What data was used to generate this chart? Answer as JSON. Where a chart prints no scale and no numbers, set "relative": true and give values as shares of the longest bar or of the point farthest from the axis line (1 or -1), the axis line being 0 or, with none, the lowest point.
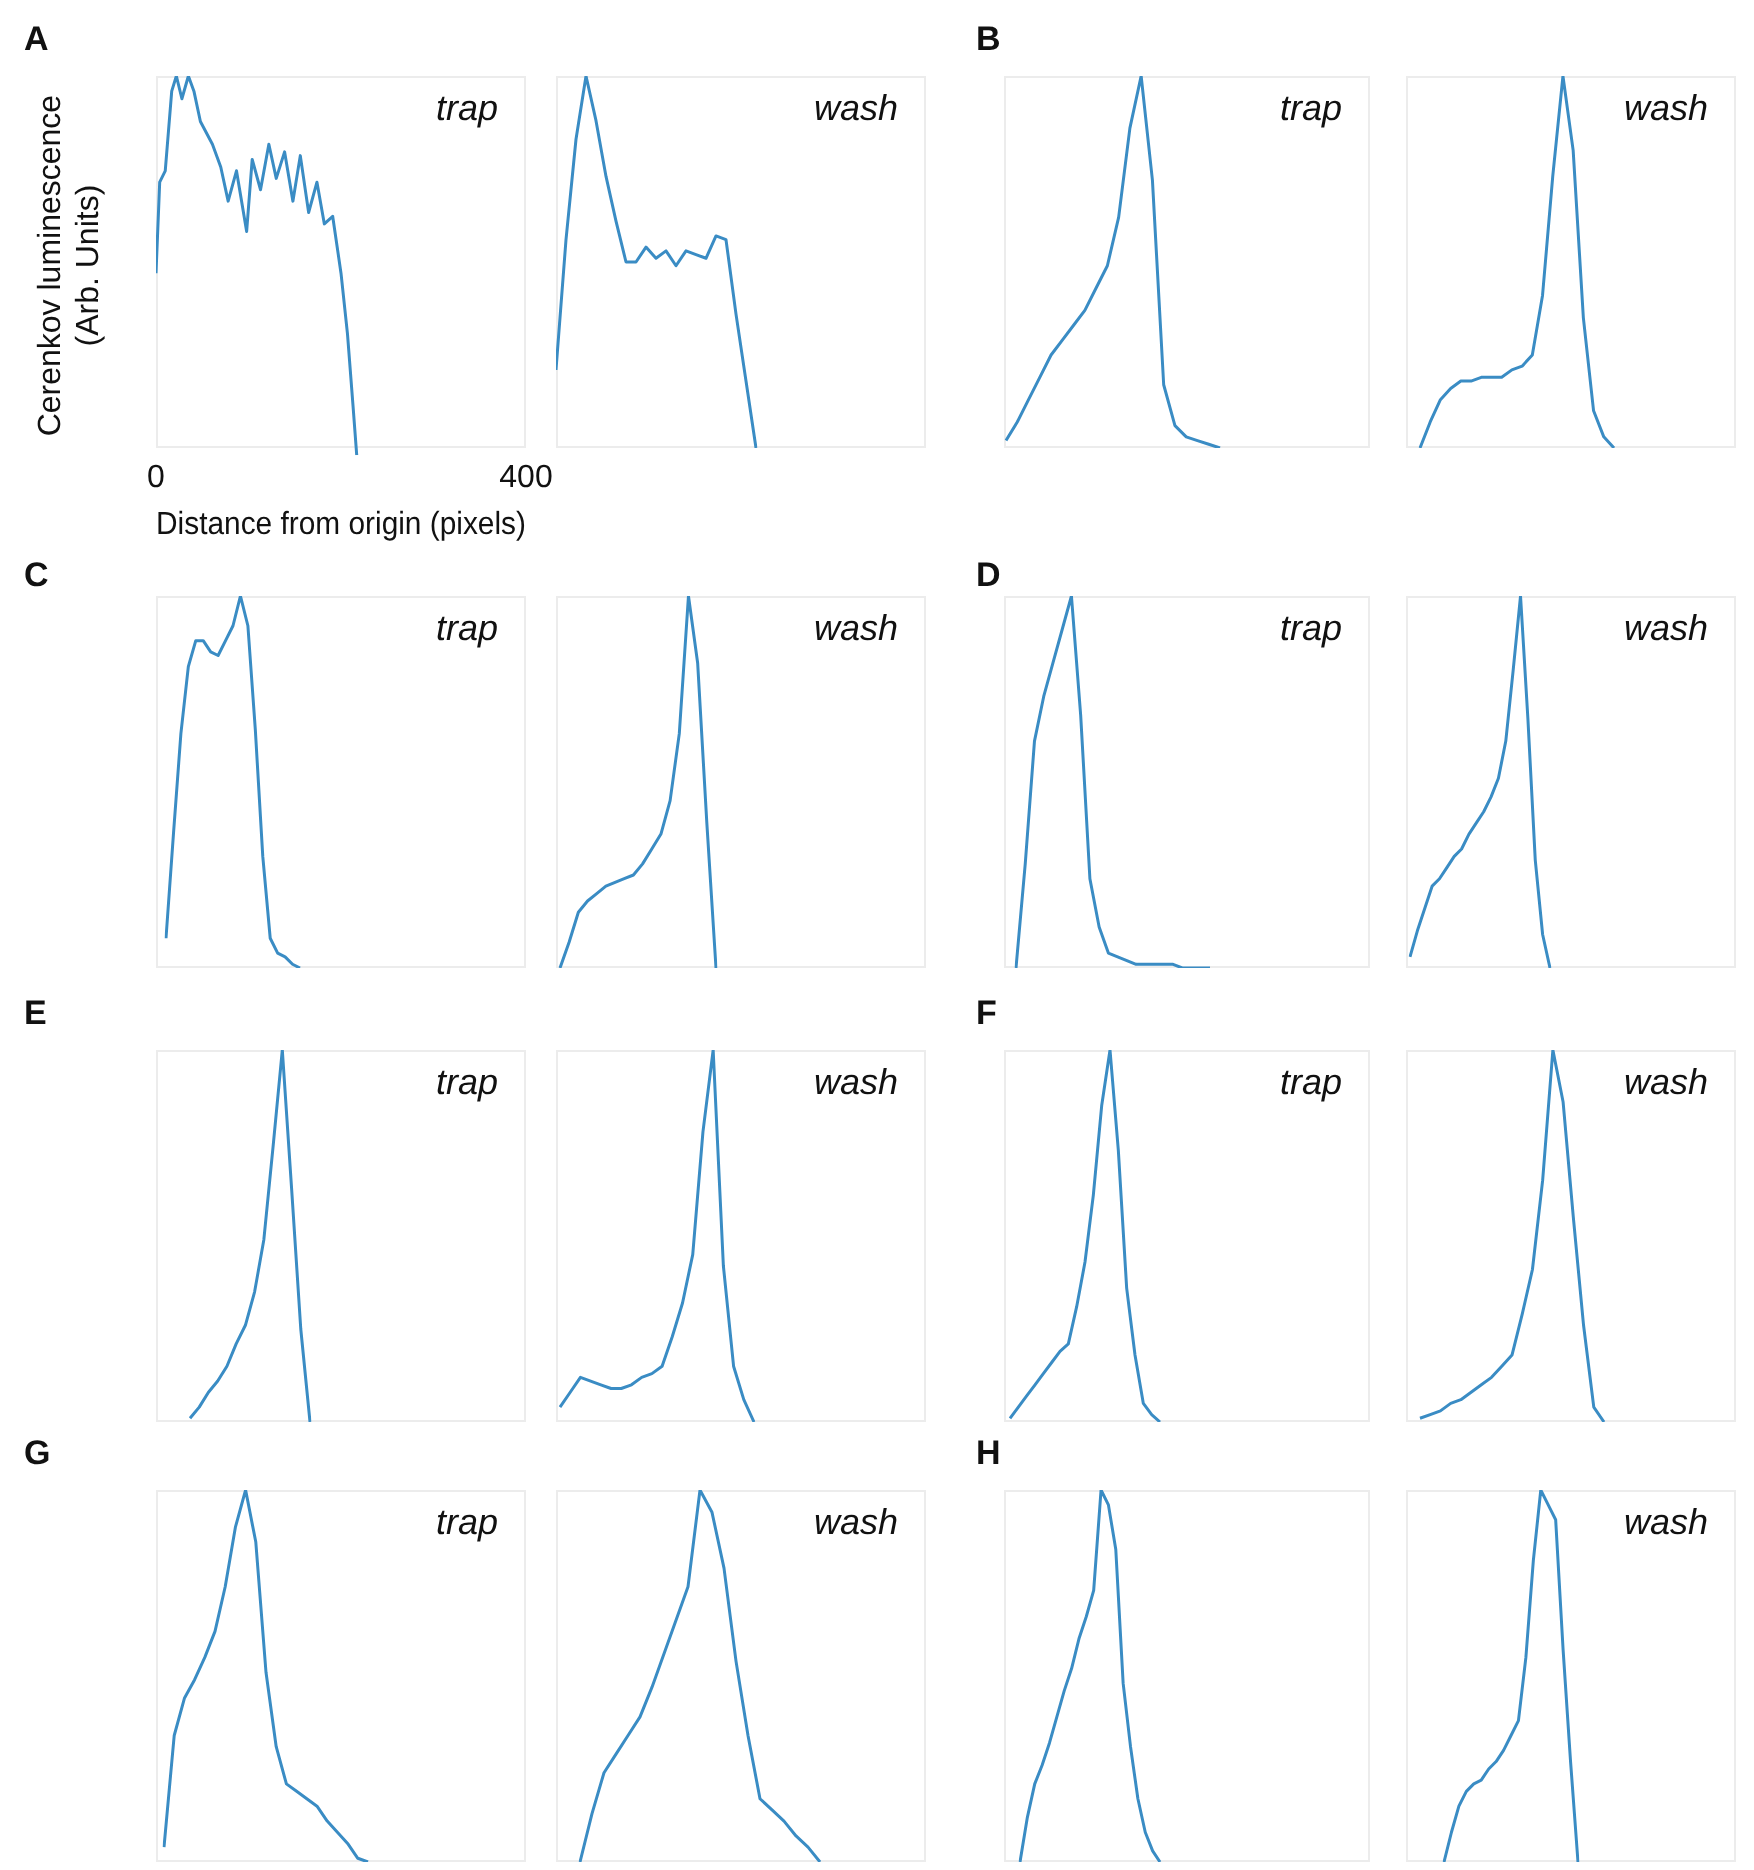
{
  "chart_data": [
    {
      "type": "line",
      "title": "A",
      "annotations": [
        "trap"
      ],
      "xlabel": "Distance from origin (pixels)",
      "ylabel": "Cerenkov luminescence (Arb. Units)",
      "relative": true,
      "xlim": [
        0,
        400
      ],
      "xticks": [
        0,
        400
      ],
      "tick_labels": "x",
      "color": "#3a8cc4",
      "x": [
        0,
        4,
        10,
        17,
        22,
        28,
        35,
        41,
        48,
        61,
        70,
        78,
        87,
        98,
        104,
        113,
        122,
        130,
        139,
        148,
        156,
        165,
        174,
        182,
        191,
        200,
        207,
        213,
        217
      ],
      "values": [
        0.48,
        0.72,
        0.75,
        0.96,
        1,
        0.94,
        1,
        0.96,
        0.88,
        0.82,
        0.76,
        0.67,
        0.75,
        0.59,
        0.78,
        0.7,
        0.82,
        0.73,
        0.8,
        0.67,
        0.79,
        0.64,
        0.72,
        0.61,
        0.63,
        0.48,
        0.32,
        0.13,
        0
      ]
    },
    {
      "type": "line",
      "annotations": [
        "wash"
      ],
      "relative": true,
      "color": "#3a8cc4",
      "categories": [
        null,
        null,
        null,
        null,
        null,
        null,
        null,
        null,
        null,
        null,
        null,
        null,
        null,
        null,
        null,
        null,
        null,
        null,
        null,
        null,
        null
      ],
      "values": [
        0.21,
        0.56,
        0.83,
        1,
        0.88,
        0.73,
        0.61,
        0.5,
        0.5,
        0.54,
        0.51,
        0.53,
        0.49,
        0.53,
        0.52,
        0.51,
        0.57,
        0.56,
        0.36,
        0.18,
        0
      ]
    },
    {
      "type": "line",
      "title": "B",
      "annotations": [
        "trap"
      ],
      "relative": true,
      "color": "#3a8cc4",
      "categories": [
        null,
        null,
        null,
        null,
        null,
        null,
        null,
        null,
        null,
        null,
        null,
        null,
        null,
        null,
        null,
        null,
        null,
        null,
        null,
        null
      ],
      "values": [
        0.02,
        0.07,
        0.13,
        0.19,
        0.25,
        0.29,
        0.33,
        0.37,
        0.43,
        0.49,
        0.62,
        0.86,
        1,
        0.72,
        0.17,
        0.06,
        0.03,
        0.02,
        0.01,
        0
      ]
    },
    {
      "type": "line",
      "annotations": [
        "wash"
      ],
      "relative": true,
      "color": "#3a8cc4",
      "categories": [
        null,
        null,
        null,
        null,
        null,
        null,
        null,
        null,
        null,
        null,
        null,
        null,
        null,
        null,
        null,
        null,
        null,
        null,
        null,
        null
      ],
      "values": [
        0,
        0.07,
        0.13,
        0.16,
        0.18,
        0.18,
        0.19,
        0.19,
        0.19,
        0.21,
        0.22,
        0.25,
        0.41,
        0.73,
        1,
        0.8,
        0.35,
        0.1,
        0.03,
        0
      ]
    },
    {
      "type": "line",
      "title": "C",
      "annotations": [
        "trap"
      ],
      "relative": true,
      "color": "#3a8cc4",
      "categories": [
        null,
        null,
        null,
        null,
        null,
        null,
        null,
        null,
        null,
        null,
        null,
        null,
        null,
        null,
        null,
        null,
        null,
        null,
        null
      ],
      "values": [
        0.08,
        0.36,
        0.63,
        0.81,
        0.88,
        0.88,
        0.85,
        0.84,
        0.88,
        0.92,
        1,
        0.92,
        0.64,
        0.3,
        0.08,
        0.04,
        0.03,
        0.01,
        0
      ]
    },
    {
      "type": "line",
      "annotations": [
        "wash"
      ],
      "relative": true,
      "color": "#3a8cc4",
      "categories": [
        null,
        null,
        null,
        null,
        null,
        null,
        null,
        null,
        null,
        null,
        null,
        null,
        null,
        null,
        null,
        null,
        null,
        null
      ],
      "values": [
        0,
        0.07,
        0.15,
        0.18,
        0.2,
        0.22,
        0.23,
        0.24,
        0.25,
        0.28,
        0.32,
        0.36,
        0.45,
        0.63,
        1,
        0.82,
        0.39,
        0
      ]
    },
    {
      "type": "line",
      "title": "D",
      "annotations": [
        "trap"
      ],
      "relative": true,
      "color": "#3a8cc4",
      "categories": [
        null,
        null,
        null,
        null,
        null,
        null,
        null,
        null,
        null,
        null,
        null,
        null,
        null,
        null,
        null,
        null,
        null,
        null,
        null,
        null,
        null,
        null
      ],
      "values": [
        0,
        0.28,
        0.61,
        0.73,
        0.82,
        0.91,
        1,
        0.68,
        0.24,
        0.11,
        0.04,
        0.03,
        0.02,
        0.01,
        0.01,
        0.01,
        0.01,
        0.01,
        0,
        0,
        0,
        0
      ]
    },
    {
      "type": "line",
      "annotations": [
        "wash"
      ],
      "relative": true,
      "color": "#3a8cc4",
      "categories": [
        null,
        null,
        null,
        null,
        null,
        null,
        null,
        null,
        null,
        null,
        null,
        null,
        null,
        null,
        null,
        null,
        null,
        null,
        null,
        null
      ],
      "values": [
        0.03,
        0.1,
        0.16,
        0.22,
        0.24,
        0.27,
        0.3,
        0.32,
        0.36,
        0.39,
        0.42,
        0.46,
        0.51,
        0.61,
        0.8,
        1,
        0.67,
        0.29,
        0.09,
        0
      ]
    },
    {
      "type": "line",
      "title": "E",
      "annotations": [
        "trap"
      ],
      "relative": true,
      "color": "#3a8cc4",
      "categories": [
        null,
        null,
        null,
        null,
        null,
        null,
        null,
        null,
        null,
        null,
        null,
        null,
        null,
        null
      ],
      "values": [
        0.01,
        0.04,
        0.08,
        0.11,
        0.15,
        0.21,
        0.26,
        0.35,
        0.49,
        0.74,
        1,
        0.63,
        0.25,
        0
      ]
    },
    {
      "type": "line",
      "annotations": [
        "wash"
      ],
      "relative": true,
      "color": "#3a8cc4",
      "categories": [
        null,
        null,
        null,
        null,
        null,
        null,
        null,
        null,
        null,
        null,
        null,
        null,
        null,
        null,
        null,
        null,
        null,
        null,
        null,
        null
      ],
      "values": [
        0.04,
        0.08,
        0.12,
        0.11,
        0.1,
        0.09,
        0.09,
        0.1,
        0.12,
        0.13,
        0.15,
        0.23,
        0.32,
        0.45,
        0.78,
        1,
        0.42,
        0.15,
        0.06,
        0
      ]
    },
    {
      "type": "line",
      "title": "F",
      "annotations": [
        "trap"
      ],
      "relative": true,
      "color": "#3a8cc4",
      "categories": [
        null,
        null,
        null,
        null,
        null,
        null,
        null,
        null,
        null,
        null,
        null,
        null,
        null,
        null,
        null,
        null,
        null,
        null,
        null
      ],
      "values": [
        0.01,
        0.04,
        0.07,
        0.1,
        0.13,
        0.16,
        0.19,
        0.21,
        0.31,
        0.43,
        0.61,
        0.85,
        1,
        0.73,
        0.36,
        0.18,
        0.05,
        0.02,
        0
      ]
    },
    {
      "type": "line",
      "annotations": [
        "wash"
      ],
      "relative": true,
      "color": "#3a8cc4",
      "categories": [
        null,
        null,
        null,
        null,
        null,
        null,
        null,
        null,
        null,
        null,
        null,
        null,
        null,
        null,
        null,
        null,
        null,
        null,
        null
      ],
      "values": [
        0.01,
        0.02,
        0.03,
        0.05,
        0.06,
        0.08,
        0.1,
        0.12,
        0.15,
        0.18,
        0.29,
        0.41,
        0.65,
        1,
        0.86,
        0.55,
        0.26,
        0.04,
        0
      ]
    },
    {
      "type": "line",
      "title": "G",
      "annotations": [
        "trap"
      ],
      "relative": true,
      "color": "#3a8cc4",
      "categories": [
        null,
        null,
        null,
        null,
        null,
        null,
        null,
        null,
        null,
        null,
        null,
        null,
        null,
        null,
        null,
        null,
        null,
        null,
        null,
        null,
        null
      ],
      "values": [
        0.04,
        0.34,
        0.44,
        0.49,
        0.55,
        0.62,
        0.74,
        0.9,
        1,
        0.86,
        0.51,
        0.31,
        0.21,
        0.19,
        0.17,
        0.15,
        0.11,
        0.08,
        0.05,
        0.01,
        0
      ]
    },
    {
      "type": "line",
      "annotations": [
        "wash"
      ],
      "relative": true,
      "color": "#3a8cc4",
      "categories": [
        null,
        null,
        null,
        null,
        null,
        null,
        null,
        null,
        null,
        null,
        null,
        null,
        null,
        null,
        null,
        null,
        null,
        null,
        null,
        null,
        null
      ],
      "values": [
        0,
        0.13,
        0.24,
        0.29,
        0.34,
        0.39,
        0.47,
        0.56,
        0.65,
        0.74,
        1,
        0.94,
        0.79,
        0.54,
        0.34,
        0.17,
        0.14,
        0.11,
        0.07,
        0.04,
        0
      ]
    },
    {
      "type": "line",
      "title": "H",
      "relative": true,
      "color": "#3a8cc4",
      "categories": [
        null,
        null,
        null,
        null,
        null,
        null,
        null,
        null,
        null,
        null,
        null,
        null,
        null,
        null,
        null,
        null,
        null,
        null,
        null,
        null
      ],
      "values": [
        0,
        0.12,
        0.21,
        0.26,
        0.32,
        0.39,
        0.46,
        0.52,
        0.6,
        0.66,
        0.73,
        1,
        0.96,
        0.84,
        0.48,
        0.31,
        0.17,
        0.08,
        0.03,
        0
      ]
    },
    {
      "type": "line",
      "annotations": [
        "wash"
      ],
      "relative": true,
      "color": "#3a8cc4",
      "categories": [
        null,
        null,
        null,
        null,
        null,
        null,
        null,
        null,
        null,
        null,
        null,
        null,
        null,
        null,
        null,
        null,
        null,
        null,
        null
      ],
      "values": [
        0,
        0.08,
        0.15,
        0.19,
        0.21,
        0.22,
        0.25,
        0.27,
        0.3,
        0.34,
        0.38,
        0.55,
        0.81,
        1,
        0.96,
        0.92,
        0.57,
        0.27,
        0
      ]
    }
  ]
}
